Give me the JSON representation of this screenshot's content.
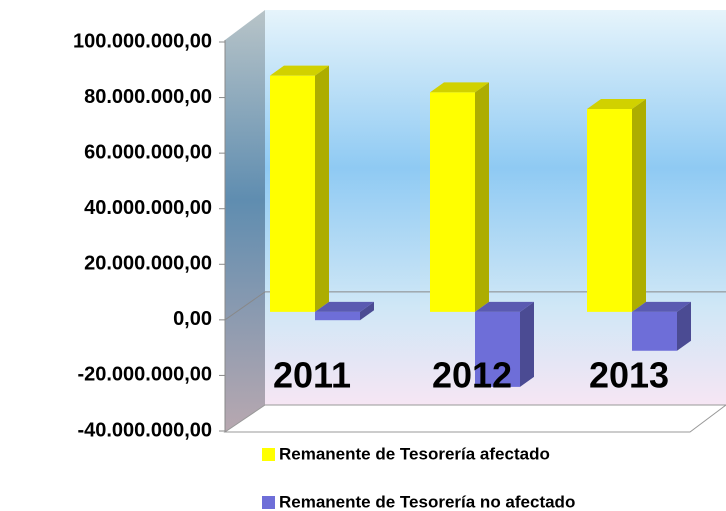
{
  "chart_data": {
    "type": "bar",
    "categories": [
      "2011",
      "2012",
      "2013"
    ],
    "series": [
      {
        "name": "Remanente de Tesorería afectado",
        "color": "#ffff00",
        "values": [
          85000000,
          79000000,
          73000000
        ]
      },
      {
        "name": "Remanente de Tesorería no afectado",
        "color": "#6e6ed8",
        "values": [
          -3000000,
          -27000000,
          -14000000
        ]
      }
    ],
    "ylim": [
      -40000000,
      100000000
    ],
    "yticks": [
      {
        "value": -40000000,
        "label": "-40.000.000,00"
      },
      {
        "value": -20000000,
        "label": "-20.000.000,00"
      },
      {
        "value": 0,
        "label": "0,00"
      },
      {
        "value": 20000000,
        "label": "20.000.000,00"
      },
      {
        "value": 40000000,
        "label": "40.000.000,00"
      },
      {
        "value": 60000000,
        "label": "60.000.000,00"
      },
      {
        "value": 80000000,
        "label": "80.000.000,00"
      },
      {
        "value": 100000000,
        "label": "100.000.000,00"
      }
    ]
  }
}
